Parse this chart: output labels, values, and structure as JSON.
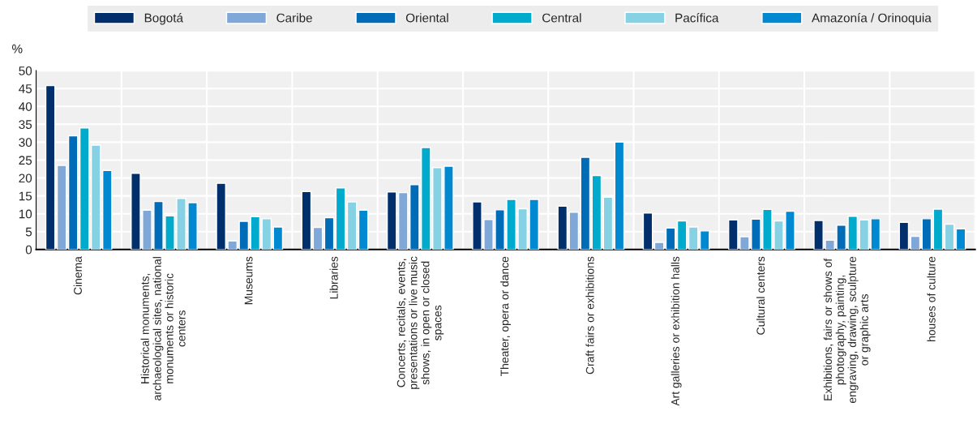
{
  "chart_data": {
    "type": "bar",
    "ylabel": "%",
    "categories": [
      "Cinema",
      "Historical monuments,\narchaeological sites, national\nmonuments or historic\ncenters",
      "Museums",
      "Libraries",
      "Concerts, recitals, events,\npresentations or live music\nshows, in open or closed\nspaces",
      "Theater, opera or dance",
      "Craft fairs or exhibitions",
      "Art galleries or exhibition halls",
      "Cultural centers",
      "Exhibitions, fairs or shows of\nphotography, painting,\nengraving, drawing, sculpture\nor graphic arts",
      "houses of culture"
    ],
    "series": [
      {
        "name": "Bogotá",
        "color": "#002f6c",
        "values": [
          45.8,
          21.3,
          18.5,
          16.2,
          16.1,
          13.3,
          12.1,
          10.2,
          8.3,
          8.1,
          7.6
        ]
      },
      {
        "name": "Caribe",
        "color": "#7fa8d9",
        "values": [
          23.5,
          11.0,
          2.4,
          6.2,
          15.9,
          8.4,
          10.4,
          2.0,
          3.6,
          2.6,
          3.7
        ]
      },
      {
        "name": "Oriental",
        "color": "#006bb6",
        "values": [
          31.8,
          13.4,
          7.9,
          8.9,
          18.1,
          11.1,
          25.8,
          6.0,
          8.5,
          6.8,
          8.6
        ]
      },
      {
        "name": "Central",
        "color": "#00aacc",
        "values": [
          34.0,
          9.4,
          9.2,
          17.2,
          28.5,
          14.0,
          20.7,
          8.0,
          11.2,
          9.3,
          11.3
        ]
      },
      {
        "name": "Pacífica",
        "color": "#86d1e4",
        "values": [
          29.2,
          14.3,
          8.6,
          13.3,
          22.9,
          11.4,
          14.6,
          6.3,
          8.0,
          8.3,
          7.1
        ]
      },
      {
        "name": "Amazonía / Orinoquia",
        "color": "#0088d1",
        "values": [
          22.1,
          13.1,
          6.3,
          11.0,
          23.3,
          14.0,
          30.0,
          5.2,
          10.7,
          8.6,
          5.8
        ]
      }
    ],
    "ylim": [
      0,
      50
    ],
    "yticks": [
      0,
      5,
      10,
      15,
      20,
      25,
      30,
      35,
      40,
      45,
      50
    ],
    "grid": true,
    "legend": "top"
  }
}
